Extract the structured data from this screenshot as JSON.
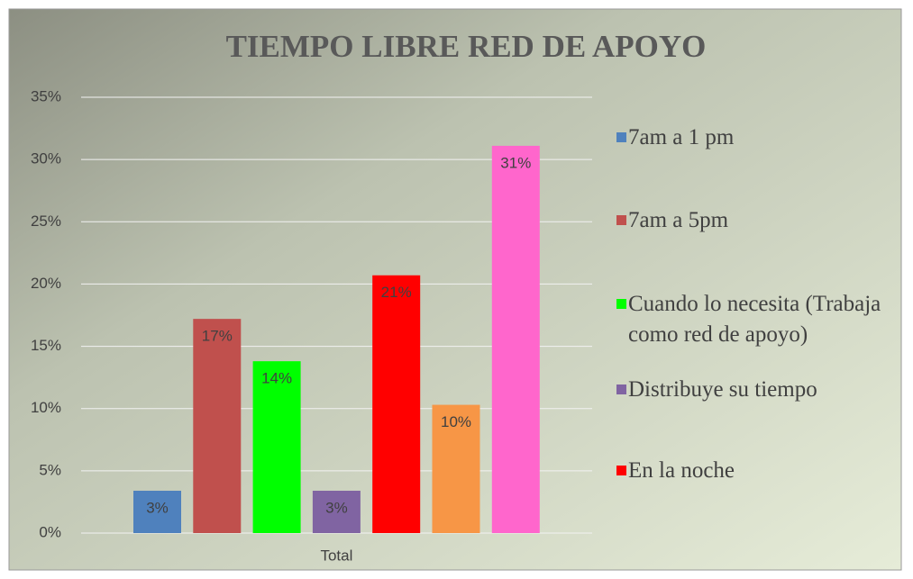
{
  "chart_data": {
    "type": "bar",
    "title": "TIEMPO LIBRE RED DE APOYO",
    "categories": [
      "Total"
    ],
    "series": [
      {
        "name": "7am a 1 pm",
        "color": "#4f81bd",
        "values": [
          3.4
        ],
        "value_labels": [
          "3%"
        ]
      },
      {
        "name": "7am a 5pm",
        "color": "#c0504d",
        "values": [
          17.2
        ],
        "value_labels": [
          "17%"
        ]
      },
      {
        "name": "Cuando lo necesita (Trabaja como red de apoyo)",
        "color": "#00ff00",
        "values": [
          13.8
        ],
        "value_labels": [
          "14%"
        ]
      },
      {
        "name": "Distribuye su tiempo",
        "color": "#8064a2",
        "values": [
          3.4
        ],
        "value_labels": [
          "3%"
        ]
      },
      {
        "name": "En la noche",
        "color": "#ff0000",
        "values": [
          20.7
        ],
        "value_labels": [
          "21%"
        ]
      },
      {
        "color": "#f79646",
        "values": [
          10.3
        ],
        "value_labels": [
          "10%"
        ]
      },
      {
        "color": "#ff66cc",
        "values": [
          31.1
        ],
        "value_labels": [
          "31%"
        ]
      }
    ],
    "ylim": [
      0,
      35
    ],
    "yticks": [
      {
        "value": 0,
        "label": "0%"
      },
      {
        "value": 5,
        "label": "5%"
      },
      {
        "value": 10,
        "label": "10%"
      },
      {
        "value": 15,
        "label": "15%"
      },
      {
        "value": 20,
        "label": "20%"
      },
      {
        "value": 25,
        "label": "25%"
      },
      {
        "value": 30,
        "label": "30%"
      },
      {
        "value": 35,
        "label": "35%"
      }
    ],
    "grid": true,
    "legend": "right"
  }
}
